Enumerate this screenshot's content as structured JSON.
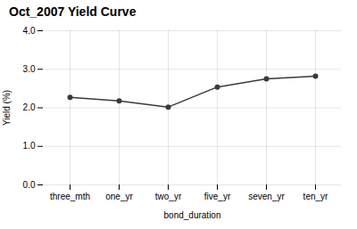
{
  "chart_data": {
    "type": "line",
    "title": "Oct_2007 Yield Curve",
    "xlabel": "bond_duration",
    "ylabel": "Yield (%)",
    "categories": [
      "three_mth",
      "one_yr",
      "two_yr",
      "five_yr",
      "seven_yr",
      "ten_yr"
    ],
    "values": [
      2.27,
      2.18,
      2.02,
      2.54,
      2.75,
      2.82
    ],
    "color": "#3a3a3a",
    "marker": "circle",
    "ylim": [
      0,
      4
    ],
    "yticks": [
      0,
      1,
      2,
      3,
      4
    ],
    "grid": true
  }
}
